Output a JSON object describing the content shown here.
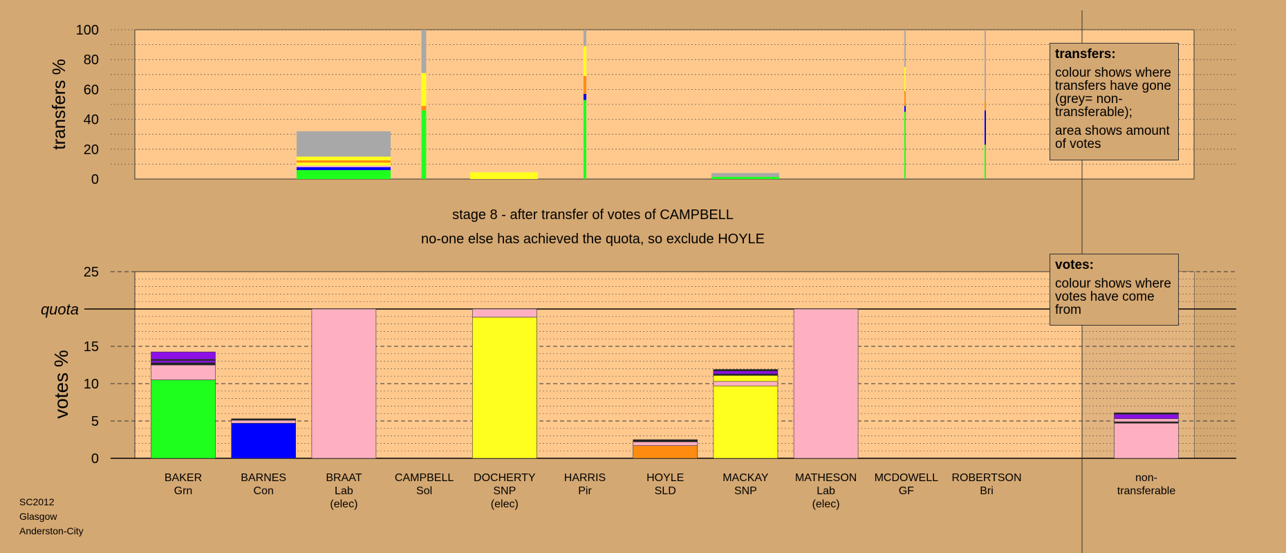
{
  "colors": {
    "background": "#D4A872",
    "plot_background": "#FFC98E",
    "nontransferable_background": "#E2B480",
    "grey": "#A8A8A8",
    "green": "#1EFF1E",
    "blue": "#0000FF",
    "pink": "#FFB0C0",
    "yellow": "#FFFF1E",
    "orange": "#FF8C10",
    "purple": "#8C10E6",
    "dark": "#202020"
  },
  "titles": {
    "stage": "stage 8 - after transfer of votes of CAMPBELL",
    "note": "no-one else has achieved the quota, so exclude HOYLE"
  },
  "legends": {
    "transfers": {
      "title": "transfers:",
      "line1": "colour shows where transfers have gone (grey= non-transferable);",
      "line2": "area shows amount of votes"
    },
    "votes": {
      "title": "votes:",
      "line1": "colour shows where votes have come from"
    }
  },
  "footer": {
    "line1": "SC2012",
    "line2": "Glasgow",
    "line3": "Anderston-City"
  },
  "chart_data": [
    {
      "type": "bar",
      "name": "transfers",
      "ylabel": "transfers %",
      "ylim": [
        0,
        100
      ],
      "yticks": [
        0,
        20,
        40,
        60,
        80,
        100
      ],
      "grid": "dotted",
      "bars": [
        {
          "candidate": "BRAAT",
          "width_rel": 1.0,
          "segments": [
            {
              "color": "green",
              "value": 6
            },
            {
              "color": "blue",
              "value": 2
            },
            {
              "color": "pink",
              "value": 1
            },
            {
              "color": "yellow",
              "value": 2
            },
            {
              "color": "orange",
              "value": 1.5
            },
            {
              "color": "yellow",
              "value": 2.5
            },
            {
              "color": "grey",
              "value": 17
            }
          ]
        },
        {
          "candidate": "CAMPBELL",
          "width_rel": 0.05,
          "segments": [
            {
              "color": "green",
              "value": 46
            },
            {
              "color": "orange",
              "value": 3
            },
            {
              "color": "yellow",
              "value": 22
            },
            {
              "color": "grey",
              "value": 29
            }
          ]
        },
        {
          "candidate": "DOCHERTY",
          "width_rel": 0.72,
          "segments": [
            {
              "color": "yellow",
              "value": 4.5
            }
          ]
        },
        {
          "candidate": "HARRIS",
          "width_rel": 0.03,
          "segments": [
            {
              "color": "green",
              "value": 53
            },
            {
              "color": "blue",
              "value": 4
            },
            {
              "color": "orange",
              "value": 12
            },
            {
              "color": "yellow",
              "value": 20
            },
            {
              "color": "grey",
              "value": 11
            }
          ]
        },
        {
          "candidate": "MATHESON",
          "width_rel": 0.72,
          "segments": [
            {
              "color": "green",
              "value": 1.5
            },
            {
              "color": "grey",
              "value": 2.5
            }
          ]
        },
        {
          "candidate": "MCDOWELL",
          "width_rel": 0.015,
          "segments": [
            {
              "color": "green",
              "value": 45
            },
            {
              "color": "blue",
              "value": 4
            },
            {
              "color": "orange",
              "value": 10
            },
            {
              "color": "yellow",
              "value": 16
            },
            {
              "color": "grey",
              "value": 25
            }
          ]
        },
        {
          "candidate": "ROBERTSON",
          "width_rel": 0.015,
          "segments": [
            {
              "color": "green",
              "value": 23
            },
            {
              "color": "blue",
              "value": 23
            },
            {
              "color": "orange",
              "value": 6
            },
            {
              "color": "grey",
              "value": 48
            }
          ]
        }
      ]
    },
    {
      "type": "bar",
      "name": "votes",
      "ylabel": "votes %",
      "ylim": [
        0,
        25
      ],
      "yticks": [
        0,
        5,
        10,
        15,
        20,
        25
      ],
      "quota_label": "quota",
      "quota": 20,
      "grid": "dashed",
      "categories": [
        {
          "name": "BAKER",
          "party": "Grn",
          "note": ""
        },
        {
          "name": "BARNES",
          "party": "Con",
          "note": ""
        },
        {
          "name": "BRAAT",
          "party": "Lab",
          "note": "(elec)"
        },
        {
          "name": "CAMPBELL",
          "party": "Sol",
          "note": ""
        },
        {
          "name": "DOCHERTY",
          "party": "SNP",
          "note": "(elec)"
        },
        {
          "name": "HARRIS",
          "party": "Pir",
          "note": ""
        },
        {
          "name": "HOYLE",
          "party": "SLD",
          "note": ""
        },
        {
          "name": "MACKAY",
          "party": "SNP",
          "note": ""
        },
        {
          "name": "MATHESON",
          "party": "Lab",
          "note": "(elec)"
        },
        {
          "name": "MCDOWELL",
          "party": "GF",
          "note": ""
        },
        {
          "name": "ROBERTSON",
          "party": "Bri",
          "note": ""
        },
        {
          "name": "non-",
          "party": "transferable",
          "note": ""
        }
      ],
      "stacks": [
        [
          {
            "color": "green",
            "value": 10.5
          },
          {
            "color": "pink",
            "value": 2.0
          },
          {
            "color": "dark",
            "value": 0.3
          },
          {
            "color": "purple",
            "value": 0.3
          },
          {
            "color": "dark",
            "value": 0.15
          },
          {
            "color": "purple",
            "value": 1.0
          }
        ],
        [
          {
            "color": "blue",
            "value": 4.7
          },
          {
            "color": "pink",
            "value": 0.4
          },
          {
            "color": "dark",
            "value": 0.2
          }
        ],
        [
          {
            "color": "pink",
            "value": 20.0
          }
        ],
        [],
        [
          {
            "color": "yellow",
            "value": 18.9
          },
          {
            "color": "pink",
            "value": 1.1
          }
        ],
        [],
        [
          {
            "color": "orange",
            "value": 1.7
          },
          {
            "color": "pink",
            "value": 0.5
          },
          {
            "color": "dark",
            "value": 0.3
          }
        ],
        [
          {
            "color": "yellow",
            "value": 9.7
          },
          {
            "color": "pink",
            "value": 0.6
          },
          {
            "color": "yellow",
            "value": 0.8
          },
          {
            "color": "dark",
            "value": 0.2
          },
          {
            "color": "purple",
            "value": 0.4
          },
          {
            "color": "dark",
            "value": 0.2
          }
        ],
        [
          {
            "color": "pink",
            "value": 20.0
          }
        ],
        [],
        [],
        [
          {
            "color": "pink",
            "value": 4.7
          },
          {
            "color": "dark",
            "value": 0.2
          },
          {
            "color": "pink",
            "value": 0.4
          },
          {
            "color": "purple",
            "value": 0.6
          },
          {
            "color": "dark",
            "value": 0.2
          }
        ]
      ]
    }
  ]
}
